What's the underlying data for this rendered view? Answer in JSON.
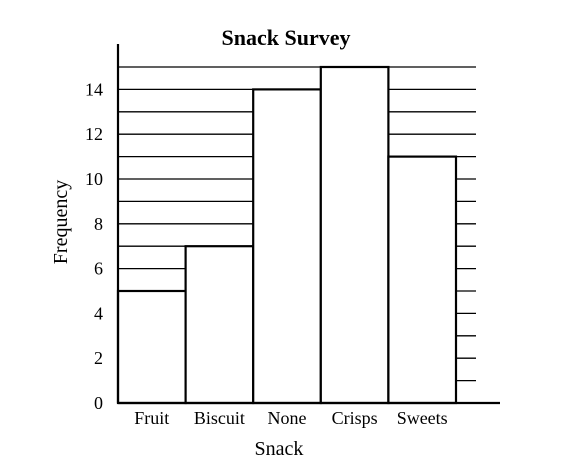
{
  "chart_data": {
    "type": "bar",
    "title": "Snack Survey",
    "xlabel": "Snack",
    "ylabel": "Frequency",
    "categories": [
      "Fruit",
      "Biscuit",
      "None",
      "Crisps",
      "Sweets"
    ],
    "values": [
      5,
      7,
      14,
      15,
      11
    ],
    "ylim": [
      0,
      15
    ],
    "yticks": [
      "0",
      "2",
      "4",
      "6",
      "8",
      "10",
      "12",
      "14"
    ],
    "grid": true
  }
}
